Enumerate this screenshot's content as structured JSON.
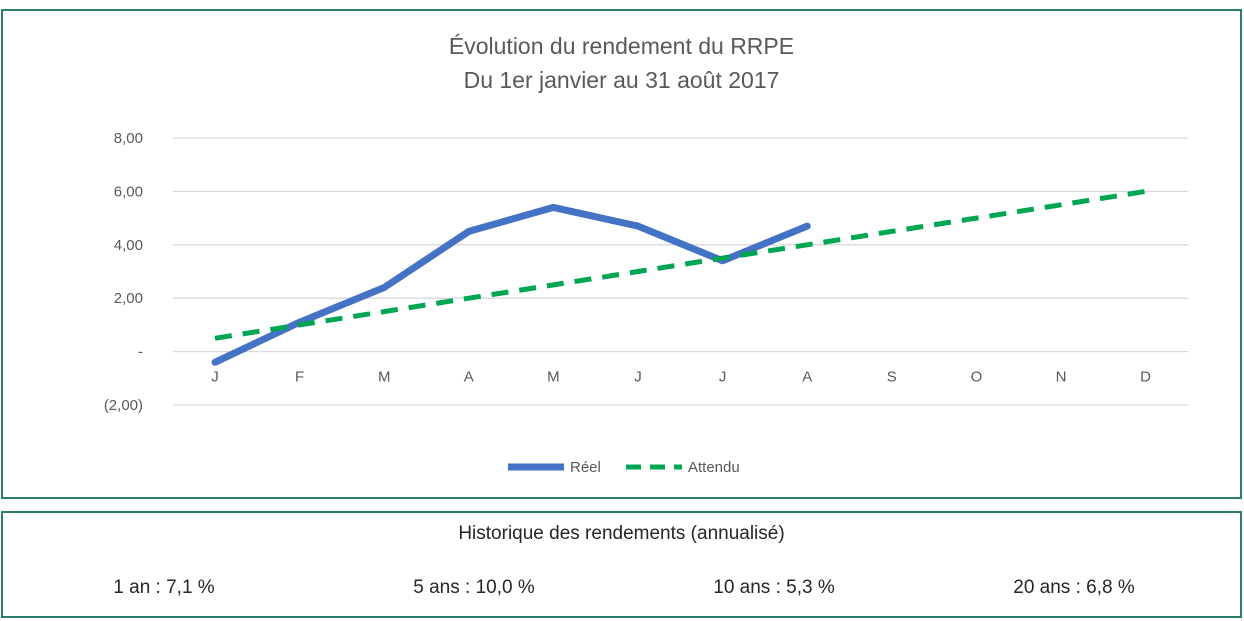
{
  "chart_data": {
    "type": "line",
    "title": "Évolution du rendement du RRPE",
    "subtitle": "Du 1er janvier au 31 août 2017",
    "categories": [
      "J",
      "F",
      "M",
      "A",
      "M",
      "J",
      "J",
      "A",
      "S",
      "O",
      "N",
      "D"
    ],
    "series": [
      {
        "name": "Réel",
        "color": "#4472c4",
        "style": "solid",
        "values": [
          -0.4,
          1.1,
          2.4,
          4.5,
          5.4,
          4.7,
          3.4,
          4.7,
          null,
          null,
          null,
          null
        ]
      },
      {
        "name": "Attendu",
        "color": "#00a651",
        "style": "dashed",
        "values": [
          0.5,
          1.0,
          1.5,
          2.0,
          2.5,
          3.0,
          3.5,
          4.0,
          4.5,
          5.0,
          5.5,
          6.0
        ]
      }
    ],
    "yticks": [
      {
        "value": 8,
        "label": "8,00"
      },
      {
        "value": 6,
        "label": "6,00"
      },
      {
        "value": 4,
        "label": "4,00"
      },
      {
        "value": 2,
        "label": "2,00"
      },
      {
        "value": 0,
        "label": "-"
      },
      {
        "value": -2,
        "label": "(2,00)"
      }
    ],
    "ylim": [
      -2,
      8
    ],
    "grid": true,
    "legend_position": "bottom"
  },
  "history": {
    "title": "Historique des rendements (annualisé)",
    "stats": [
      "1 an : 7,1 %",
      "5 ans : 10,0 %",
      "10 ans : 5,3 %",
      "20 ans : 6,8 %"
    ]
  }
}
